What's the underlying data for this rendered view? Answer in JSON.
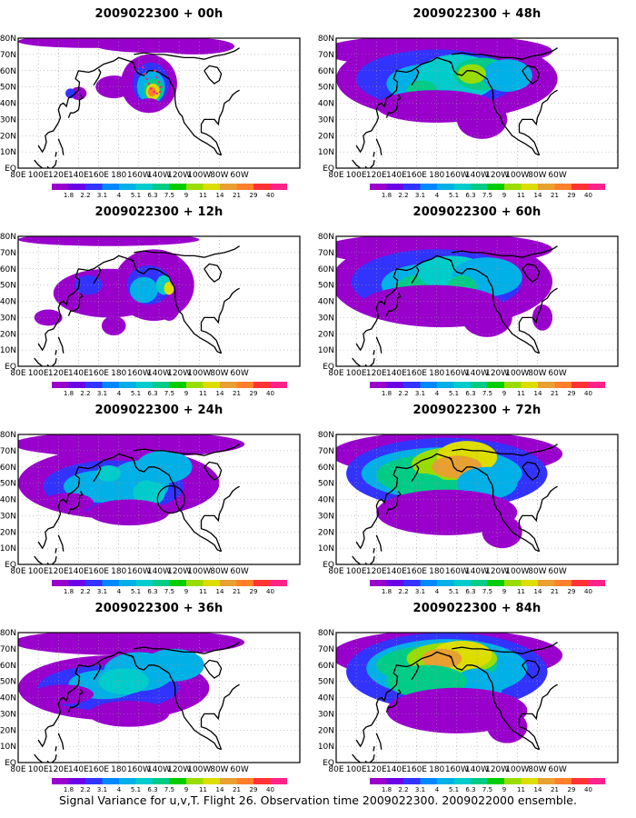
{
  "panels": [
    {
      "title": "2009022300  + 00h",
      "lead": "00h"
    },
    {
      "title": "2009022300  + 48h",
      "lead": "48h"
    },
    {
      "title": "2009022300  + 12h",
      "lead": "12h"
    },
    {
      "title": "2009022300  + 60h",
      "lead": "60h"
    },
    {
      "title": "2009022300  + 24h",
      "lead": "24h"
    },
    {
      "title": "2009022300  + 72h",
      "lead": "72h"
    },
    {
      "title": "2009022300  + 36h",
      "lead": "36h"
    },
    {
      "title": "2009022300  + 84h",
      "lead": "84h"
    }
  ],
  "axes": {
    "lat_labels": [
      "80N",
      "70N",
      "60N",
      "50N",
      "40N",
      "30N",
      "20N",
      "10N",
      "EQ"
    ],
    "lon_labels": [
      "80E",
      "100E",
      "120E",
      "140E",
      "160E",
      "180",
      "160W",
      "140W",
      "120W",
      "100W",
      "80W",
      "60W"
    ]
  },
  "colorbar": {
    "levels": [
      "1.8",
      "2.2",
      "3.1",
      "4",
      "5.1",
      "6.3",
      "7.5",
      "9",
      "11",
      "14",
      "21",
      "29",
      "40"
    ],
    "colors": [
      "#9900cc",
      "#6a00e6",
      "#3333ff",
      "#0088ff",
      "#00b0e6",
      "#00cccc",
      "#00cc88",
      "#00cc00",
      "#99dd00",
      "#dddd00",
      "#e8a030",
      "#ff7f2a",
      "#ff3333",
      "#ff2288"
    ]
  },
  "caption": "Signal Variance for u,v,T. Flight 26. Observation time 2009022300. 2009022000 ensemble."
}
